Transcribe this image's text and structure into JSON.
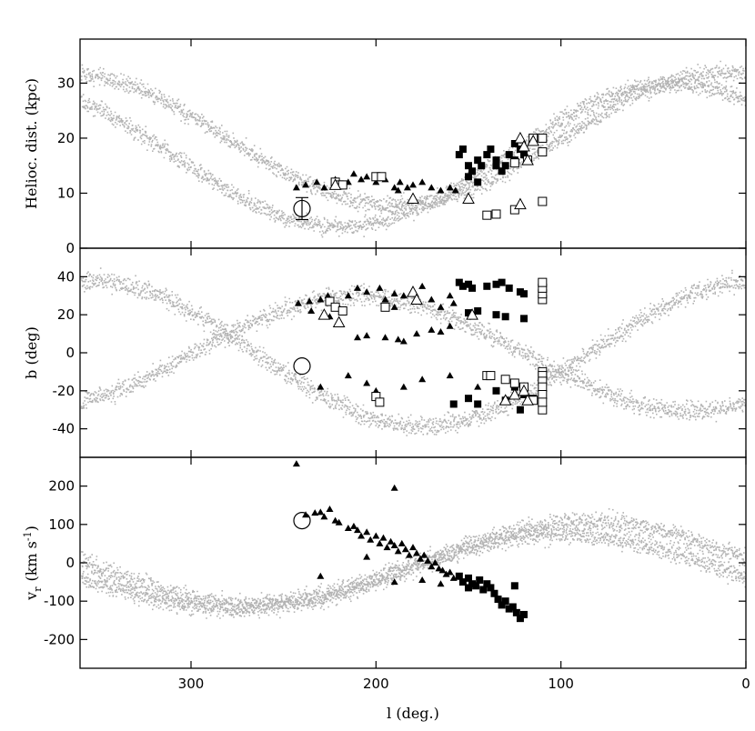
{
  "chart_data": [
    {
      "type": "scatter",
      "panel": "distance",
      "ylabel": "Helioc. dist. (kpc)",
      "xlabel": "",
      "xlim": [
        360,
        0
      ],
      "ylim": [
        0,
        38
      ],
      "yticks": [
        0,
        10,
        20,
        30
      ],
      "xticks": [
        300,
        200,
        100,
        0
      ],
      "model_color": "#b3b3b3",
      "series": [
        {
          "marker": "filled-triangle",
          "points": [
            [
              243,
              11
            ],
            [
              238,
              11.5
            ],
            [
              232,
              12
            ],
            [
              228,
              11
            ],
            [
              222,
              12.5
            ],
            [
              215,
              12
            ],
            [
              212,
              13.5
            ],
            [
              208,
              12.5
            ],
            [
              205,
              13
            ],
            [
              200,
              12
            ],
            [
              195,
              12.5
            ],
            [
              190,
              11
            ],
            [
              187,
              12
            ],
            [
              183,
              11
            ],
            [
              180,
              11.5
            ],
            [
              175,
              12
            ],
            [
              170,
              11
            ],
            [
              165,
              10.5
            ],
            [
              160,
              11
            ],
            [
              157,
              10.5
            ],
            [
              188,
              10.5
            ]
          ]
        },
        {
          "marker": "filled-square",
          "points": [
            [
              155,
              17
            ],
            [
              153,
              18
            ],
            [
              150,
              15
            ],
            [
              148,
              14
            ],
            [
              145,
              16
            ],
            [
              143,
              15
            ],
            [
              140,
              17
            ],
            [
              138,
              18
            ],
            [
              135,
              16
            ],
            [
              132,
              14
            ],
            [
              130,
              15
            ],
            [
              128,
              17
            ],
            [
              125,
              19
            ],
            [
              122,
              18
            ],
            [
              120,
              17
            ],
            [
              118,
              16
            ],
            [
              150,
              13
            ],
            [
              145,
              12
            ],
            [
              135,
              15
            ],
            [
              125,
              16
            ]
          ]
        },
        {
          "marker": "open-square",
          "points": [
            [
              222,
              12
            ],
            [
              220,
              11.5
            ],
            [
              218,
              11.5
            ],
            [
              200,
              13
            ],
            [
              197,
              13
            ],
            [
              140,
              6
            ],
            [
              135,
              6.2
            ],
            [
              125,
              7
            ],
            [
              115,
              20
            ],
            [
              110,
              20
            ],
            [
              110,
              17.5
            ],
            [
              110,
              8.5
            ],
            [
              125,
              15.5
            ],
            [
              118,
              16
            ]
          ]
        },
        {
          "marker": "open-triangle",
          "points": [
            [
              222,
              11.5
            ],
            [
              180,
              9
            ],
            [
              150,
              9
            ],
            [
              122,
              8
            ],
            [
              122,
              20
            ],
            [
              120,
              18.5
            ],
            [
              118,
              16
            ],
            [
              115,
              19.5
            ]
          ]
        },
        {
          "marker": "open-circle-errorbar",
          "points": [
            [
              240,
              7.2
            ]
          ],
          "yerr": 2
        }
      ]
    },
    {
      "type": "scatter",
      "panel": "latitude",
      "ylabel": "b (deg)",
      "xlabel": "",
      "xlim": [
        360,
        0
      ],
      "ylim": [
        -55,
        55
      ],
      "yticks": [
        -40,
        -20,
        0,
        20,
        40
      ],
      "xticks": [
        300,
        200,
        100,
        0
      ],
      "series": [
        {
          "marker": "filled-triangle",
          "points": [
            [
              242,
              26
            ],
            [
              236,
              27
            ],
            [
              230,
              28
            ],
            [
              226,
              30
            ],
            [
              220,
              24
            ],
            [
              215,
              30
            ],
            [
              210,
              34
            ],
            [
              205,
              32
            ],
            [
              198,
              34
            ],
            [
              195,
              28
            ],
            [
              190,
              31
            ],
            [
              185,
              30
            ],
            [
              180,
              32
            ],
            [
              175,
              35
            ],
            [
              170,
              28
            ],
            [
              165,
              24
            ],
            [
              160,
              30
            ],
            [
              158,
              26
            ],
            [
              210,
              8
            ],
            [
              205,
              9
            ],
            [
              195,
              8
            ],
            [
              188,
              7
            ],
            [
              185,
              6
            ],
            [
              178,
              10
            ],
            [
              170,
              12
            ],
            [
              165,
              11
            ],
            [
              160,
              14
            ],
            [
              230,
              -18
            ],
            [
              215,
              -12
            ],
            [
              205,
              -16
            ],
            [
              200,
              -20
            ],
            [
              185,
              -18
            ],
            [
              175,
              -14
            ],
            [
              160,
              -12
            ],
            [
              145,
              -18
            ],
            [
              235,
              22
            ],
            [
              225,
              19
            ],
            [
              190,
              24
            ]
          ]
        },
        {
          "marker": "filled-square",
          "points": [
            [
              155,
              37
            ],
            [
              153,
              35
            ],
            [
              150,
              36
            ],
            [
              148,
              34
            ],
            [
              140,
              35
            ],
            [
              135,
              36
            ],
            [
              132,
              37
            ],
            [
              128,
              34
            ],
            [
              122,
              32
            ],
            [
              120,
              31
            ],
            [
              150,
              21
            ],
            [
              145,
              22
            ],
            [
              135,
              20
            ],
            [
              130,
              19
            ],
            [
              120,
              18
            ],
            [
              158,
              -27
            ],
            [
              150,
              -24
            ],
            [
              145,
              -27
            ],
            [
              135,
              -20
            ],
            [
              130,
              -25
            ],
            [
              125,
              -18
            ],
            [
              120,
              -22
            ],
            [
              115,
              -24
            ],
            [
              122,
              -30
            ]
          ]
        },
        {
          "marker": "open-square",
          "points": [
            [
              225,
              27
            ],
            [
              222,
              24
            ],
            [
              218,
              22
            ],
            [
              195,
              24
            ],
            [
              200,
              -23
            ],
            [
              198,
              -26
            ],
            [
              140,
              -12
            ],
            [
              138,
              -12
            ],
            [
              130,
              -14
            ],
            [
              125,
              -16
            ],
            [
              120,
              -18
            ],
            [
              115,
              -25
            ],
            [
              110,
              -30
            ],
            [
              110,
              -10
            ],
            [
              110,
              -12
            ],
            [
              110,
              -15
            ],
            [
              110,
              -18
            ],
            [
              110,
              -22
            ],
            [
              110,
              -26
            ],
            [
              110,
              28
            ],
            [
              110,
              31
            ],
            [
              110,
              34
            ],
            [
              110,
              37
            ]
          ]
        },
        {
          "marker": "open-triangle",
          "points": [
            [
              228,
              20
            ],
            [
              220,
              16
            ],
            [
              180,
              32
            ],
            [
              178,
              28
            ],
            [
              148,
              20
            ],
            [
              130,
              -25
            ],
            [
              125,
              -22
            ],
            [
              120,
              -20
            ],
            [
              118,
              -25
            ]
          ]
        },
        {
          "marker": "open-circle",
          "points": [
            [
              240,
              -7
            ]
          ]
        }
      ]
    },
    {
      "type": "scatter",
      "panel": "velocity",
      "ylabel": "v",
      "ylabel_sub": "r",
      "ylabel_unit": "(km s",
      "ylabel_unit_sup": "-1",
      "ylabel_unit_close": ")",
      "xlabel": "l (deg.)",
      "xlim": [
        360,
        0
      ],
      "ylim": [
        -275,
        275
      ],
      "yticks": [
        -200,
        -100,
        0,
        100,
        200
      ],
      "xticks": [
        300,
        200,
        100,
        0
      ],
      "series": [
        {
          "marker": "filled-triangle",
          "points": [
            [
              243,
              258
            ],
            [
              238,
              125
            ],
            [
              233,
              130
            ],
            [
              230,
              132
            ],
            [
              228,
              120
            ],
            [
              225,
              140
            ],
            [
              222,
              110
            ],
            [
              220,
              105
            ],
            [
              215,
              90
            ],
            [
              212,
              95
            ],
            [
              210,
              85
            ],
            [
              208,
              70
            ],
            [
              205,
              80
            ],
            [
              203,
              60
            ],
            [
              200,
              70
            ],
            [
              198,
              50
            ],
            [
              196,
              65
            ],
            [
              194,
              40
            ],
            [
              192,
              55
            ],
            [
              190,
              45
            ],
            [
              188,
              30
            ],
            [
              186,
              50
            ],
            [
              184,
              35
            ],
            [
              182,
              20
            ],
            [
              180,
              40
            ],
            [
              178,
              25
            ],
            [
              176,
              10
            ],
            [
              174,
              20
            ],
            [
              172,
              5
            ],
            [
              170,
              -10
            ],
            [
              168,
              0
            ],
            [
              166,
              -15
            ],
            [
              164,
              -20
            ],
            [
              162,
              -30
            ],
            [
              160,
              -25
            ],
            [
              158,
              -40
            ],
            [
              190,
              195
            ],
            [
              230,
              -35
            ],
            [
              190,
              -50
            ],
            [
              175,
              -45
            ],
            [
              165,
              -55
            ],
            [
              205,
              15
            ]
          ]
        },
        {
          "marker": "filled-square",
          "points": [
            [
              155,
              -35
            ],
            [
              153,
              -50
            ],
            [
              150,
              -40
            ],
            [
              148,
              -55
            ],
            [
              146,
              -60
            ],
            [
              144,
              -45
            ],
            [
              142,
              -70
            ],
            [
              140,
              -55
            ],
            [
              138,
              -65
            ],
            [
              136,
              -80
            ],
            [
              134,
              -95
            ],
            [
              132,
              -110
            ],
            [
              130,
              -100
            ],
            [
              128,
              -120
            ],
            [
              126,
              -115
            ],
            [
              124,
              -130
            ],
            [
              122,
              -145
            ],
            [
              120,
              -135
            ],
            [
              125,
              -60
            ],
            [
              150,
              -65
            ]
          ]
        },
        {
          "marker": "open-circle",
          "points": [
            [
              240,
              110
            ]
          ]
        }
      ]
    }
  ]
}
